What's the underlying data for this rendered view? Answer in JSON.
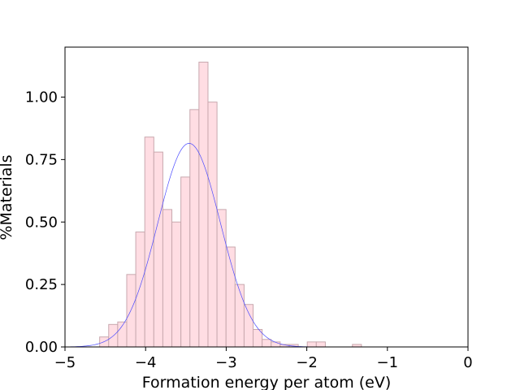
{
  "chart_data": {
    "type": "bar",
    "title": "",
    "xlabel": "Formation energy per atom (eV)",
    "ylabel": "%Materials",
    "xlim": [
      -5,
      0
    ],
    "ylim": [
      0,
      1.2
    ],
    "xticks": [
      {
        "value": -5,
        "label": "−5"
      },
      {
        "value": -4,
        "label": "−4"
      },
      {
        "value": -3,
        "label": "−3"
      },
      {
        "value": -2,
        "label": "−2"
      },
      {
        "value": -1,
        "label": "−1"
      },
      {
        "value": 0,
        "label": "0"
      }
    ],
    "yticks": [
      {
        "value": 0.0,
        "label": "0.00"
      },
      {
        "value": 0.25,
        "label": "0.25"
      },
      {
        "value": 0.5,
        "label": "0.50"
      },
      {
        "value": 0.75,
        "label": "0.75"
      },
      {
        "value": 1.0,
        "label": "1.00"
      }
    ],
    "bin_width": 0.112,
    "bins": [
      {
        "x": -4.57,
        "value": 0.04
      },
      {
        "x": -4.458,
        "value": 0.09
      },
      {
        "x": -4.346,
        "value": 0.1
      },
      {
        "x": -4.234,
        "value": 0.29
      },
      {
        "x": -4.122,
        "value": 0.46
      },
      {
        "x": -4.01,
        "value": 0.84
      },
      {
        "x": -3.898,
        "value": 0.78
      },
      {
        "x": -3.786,
        "value": 0.55
      },
      {
        "x": -3.674,
        "value": 0.5
      },
      {
        "x": -3.562,
        "value": 0.68
      },
      {
        "x": -3.45,
        "value": 0.95
      },
      {
        "x": -3.338,
        "value": 1.14
      },
      {
        "x": -3.226,
        "value": 0.98
      },
      {
        "x": -3.114,
        "value": 0.55
      },
      {
        "x": -3.002,
        "value": 0.4
      },
      {
        "x": -2.89,
        "value": 0.25
      },
      {
        "x": -2.778,
        "value": 0.17
      },
      {
        "x": -2.666,
        "value": 0.07
      },
      {
        "x": -2.554,
        "value": 0.03
      },
      {
        "x": -2.442,
        "value": 0.02
      },
      {
        "x": -2.33,
        "value": 0.01
      },
      {
        "x": -2.218,
        "value": 0.01
      },
      {
        "x": -1.994,
        "value": 0.02
      },
      {
        "x": -1.882,
        "value": 0.02
      },
      {
        "x": -1.434,
        "value": 0.01
      }
    ],
    "fit_curve": {
      "type": "normal",
      "mean": -3.46,
      "std": 0.39,
      "peak": 0.815
    },
    "colors": {
      "bar_fill": "#ffdde3",
      "bar_edge": "#c8a8ae",
      "curve": "#4b4bff"
    },
    "grid": false,
    "legend": "none"
  }
}
